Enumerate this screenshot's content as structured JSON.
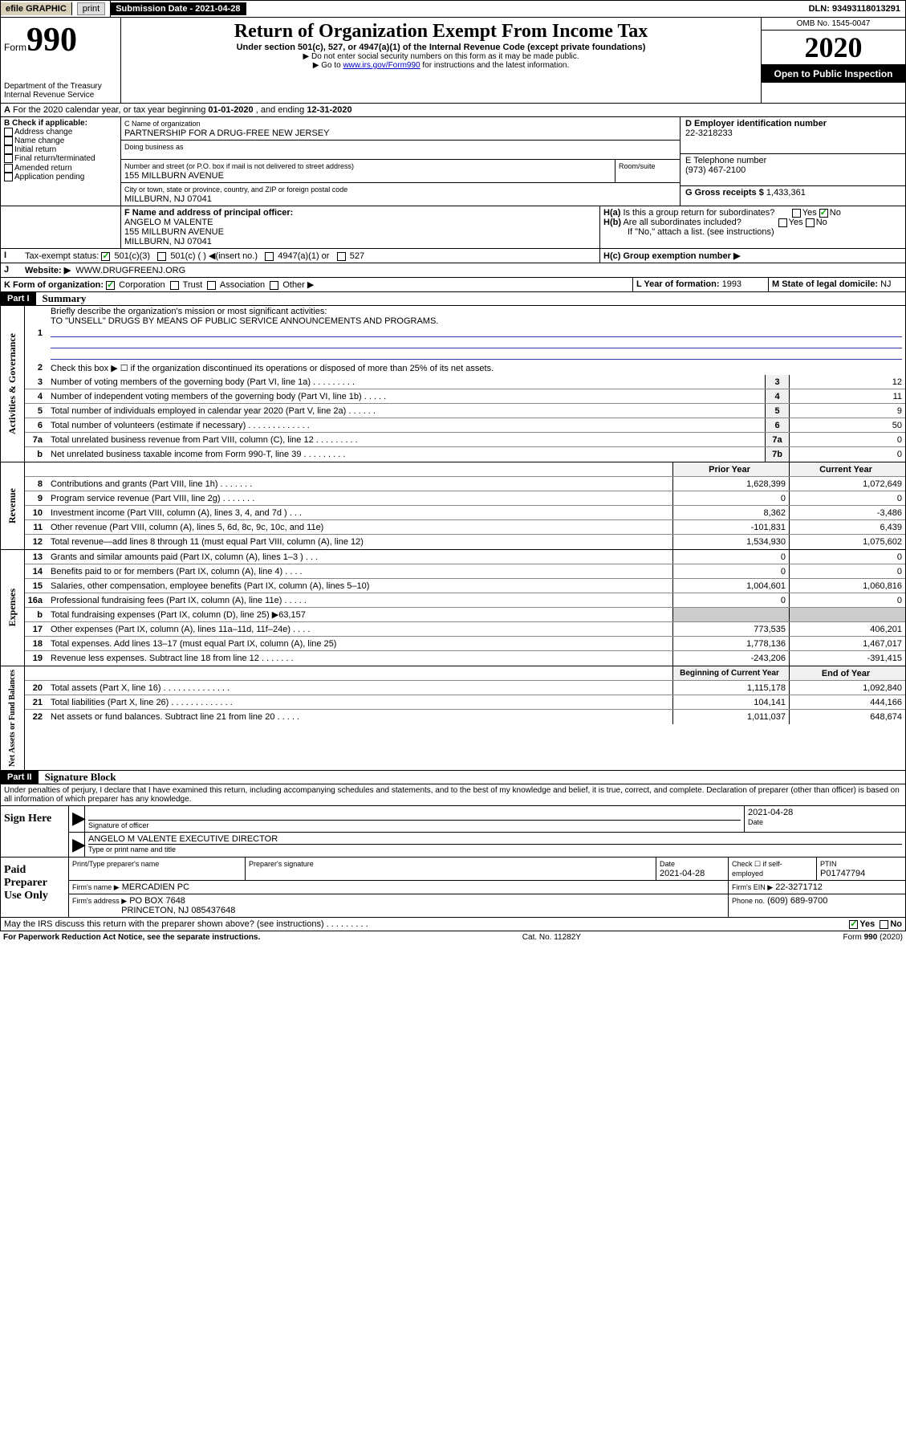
{
  "topbar": {
    "efile": "efile GRAPHIC",
    "print": "print",
    "submission_label": "Submission Date",
    "submission_date": "2021-04-28",
    "dln_label": "DLN:",
    "dln": "93493118013291"
  },
  "header": {
    "form_word": "Form",
    "form_num": "990",
    "dept": "Department of the Treasury",
    "irs": "Internal Revenue Service",
    "title": "Return of Organization Exempt From Income Tax",
    "subtitle": "Under section 501(c), 527, or 4947(a)(1) of the Internal Revenue Code (except private foundations)",
    "instr1": "▶ Do not enter social security numbers on this form as it may be made public.",
    "instr2_pre": "▶ Go to ",
    "instr2_link": "www.irs.gov/Form990",
    "instr2_post": " for instructions and the latest information.",
    "omb": "OMB No. 1545-0047",
    "year": "2020",
    "inspect": "Open to Public Inspection"
  },
  "periodA": {
    "text_pre": "For the 2020 calendar year, or tax year beginning ",
    "begin": "01-01-2020",
    "mid": " , and ending ",
    "end": "12-31-2020"
  },
  "boxB": {
    "label": "B Check if applicable:",
    "items": [
      "Address change",
      "Name change",
      "Initial return",
      "Final return/terminated",
      "Amended return",
      "Application pending"
    ]
  },
  "boxC": {
    "name_label": "C Name of organization",
    "name": "PARTNERSHIP FOR A DRUG-FREE NEW JERSEY",
    "dba_label": "Doing business as",
    "addr_label": "Number and street (or P.O. box if mail is not delivered to street address)",
    "room_label": "Room/suite",
    "addr": "155 MILLBURN AVENUE",
    "city_label": "City or town, state or province, country, and ZIP or foreign postal code",
    "city": "MILLBURN, NJ  07041"
  },
  "boxD": {
    "label": "D Employer identification number",
    "ein": "22-3218233"
  },
  "boxE": {
    "label": "E Telephone number",
    "phone": "(973) 467-2100"
  },
  "boxG": {
    "label": "G Gross receipts $",
    "amount": "1,433,361"
  },
  "boxF": {
    "label": "F Name and address of principal officer:",
    "name": "ANGELO M VALENTE",
    "addr1": "155 MILLBURN AVENUE",
    "addr2": "MILLBURN, NJ  07041"
  },
  "boxH": {
    "a_label": "H(a)  Is this a group return for subordinates?",
    "b_label": "H(b)  Are all subordinates included?",
    "b_note": "If \"No,\" attach a list. (see instructions)",
    "c_label": "H(c)  Group exemption number ▶",
    "yes": "Yes",
    "no": "No"
  },
  "boxI": {
    "label": "Tax-exempt status:",
    "opt1": "501(c)(3)",
    "opt2": "501(c) (   ) ◀(insert no.)",
    "opt3": "4947(a)(1) or",
    "opt4": "527"
  },
  "boxJ": {
    "label": "Website: ▶",
    "value": "WWW.DRUGFREENJ.ORG"
  },
  "boxK": {
    "label": "K Form of organization:",
    "opts": [
      "Corporation",
      "Trust",
      "Association",
      "Other ▶"
    ]
  },
  "boxL": {
    "label": "L Year of formation:",
    "value": "1993"
  },
  "boxM": {
    "label": "M State of legal domicile:",
    "value": "NJ"
  },
  "part1": {
    "num": "Part I",
    "title": "Summary"
  },
  "governance": {
    "label": "Activities & Governance",
    "line1_label": "Briefly describe the organization's mission or most significant activities:",
    "line1_text": "TO \"UNSELL\" DRUGS BY MEANS OF PUBLIC SERVICE ANNOUNCEMENTS AND PROGRAMS.",
    "line2": "Check this box ▶ ☐  if the organization discontinued its operations or disposed of more than 25% of its net assets.",
    "rows": [
      {
        "n": "3",
        "t": "Number of voting members of the governing body (Part VI, line 1a)   .    .    .   .    .    .    .   .    .",
        "b": "3",
        "v": "12"
      },
      {
        "n": "4",
        "t": "Number of independent voting members of the governing body (Part VI, line 1b)   .    .   .    .    .",
        "b": "4",
        "v": "11"
      },
      {
        "n": "5",
        "t": "Total number of individuals employed in calendar year 2020 (Part V, line 2a)   .    .    .   .    .    .",
        "b": "5",
        "v": "9"
      },
      {
        "n": "6",
        "t": "Total number of volunteers (estimate if necessary)    .   .    .    .    .   .    .    .    .   .    .    .    .",
        "b": "6",
        "v": "50"
      },
      {
        "n": "7a",
        "t": "Total unrelated business revenue from Part VIII, column (C), line 12   .    .    .   .    .    .    .   .    .",
        "b": "7a",
        "v": "0"
      },
      {
        "n": "b",
        "t": "Net unrelated business taxable income from Form 990-T, line 39    .   .    .    .    .   .    .    .    .",
        "b": "7b",
        "v": "0"
      }
    ]
  },
  "revenue": {
    "label": "Revenue",
    "header_prior": "Prior Year",
    "header_current": "Current Year",
    "rows": [
      {
        "n": "8",
        "t": "Contributions and grants (Part VIII, line 1h)    .   .    .    .    .   .    .",
        "p": "1,628,399",
        "c": "1,072,649"
      },
      {
        "n": "9",
        "t": "Program service revenue (Part VIII, line 2g)   .    .   .    .    .    .   .",
        "p": "0",
        "c": "0"
      },
      {
        "n": "10",
        "t": "Investment income (Part VIII, column (A), lines 3, 4, and 7d )   .    .   .",
        "p": "8,362",
        "c": "-3,486"
      },
      {
        "n": "11",
        "t": "Other revenue (Part VIII, column (A), lines 5, 6d, 8c, 9c, 10c, and 11e)",
        "p": "-101,831",
        "c": "6,439"
      },
      {
        "n": "12",
        "t": "Total revenue—add lines 8 through 11 (must equal Part VIII, column (A), line 12)",
        "p": "1,534,930",
        "c": "1,075,602"
      }
    ]
  },
  "expenses": {
    "label": "Expenses",
    "rows": [
      {
        "n": "13",
        "t": "Grants and similar amounts paid (Part IX, column (A), lines 1–3 )    .   .    .",
        "p": "0",
        "c": "0"
      },
      {
        "n": "14",
        "t": "Benefits paid to or for members (Part IX, column (A), line 4)    .   .    .    .",
        "p": "0",
        "c": "0"
      },
      {
        "n": "15",
        "t": "Salaries, other compensation, employee benefits (Part IX, column (A), lines 5–10)",
        "p": "1,004,601",
        "c": "1,060,816"
      },
      {
        "n": "16a",
        "t": "Professional fundraising fees (Part IX, column (A), line 11e)   .    .   .    .    .",
        "p": "0",
        "c": "0"
      },
      {
        "n": "b",
        "t": "Total fundraising expenses (Part IX, column (D), line 25) ▶63,157",
        "p": "",
        "c": "",
        "shaded": true
      },
      {
        "n": "17",
        "t": "Other expenses (Part IX, column (A), lines 11a–11d, 11f–24e)   .    .   .    .",
        "p": "773,535",
        "c": "406,201"
      },
      {
        "n": "18",
        "t": "Total expenses. Add lines 13–17 (must equal Part IX, column (A), line 25)",
        "p": "1,778,136",
        "c": "1,467,017"
      },
      {
        "n": "19",
        "t": "Revenue less expenses. Subtract line 18 from line 12    .   .    .    .    .   .    .",
        "p": "-243,206",
        "c": "-391,415"
      }
    ]
  },
  "netassets": {
    "label": "Net Assets or Fund Balances",
    "header_begin": "Beginning of Current Year",
    "header_end": "End of Year",
    "rows": [
      {
        "n": "20",
        "t": "Total assets (Part X, line 16)    .   .    .    .    .   .    .    .    .   .    .    .    .   .",
        "p": "1,115,178",
        "c": "1,092,840"
      },
      {
        "n": "21",
        "t": "Total liabilities (Part X, line 26)   .    .    .    .   .    .    .    .   .    .    .    .   .",
        "p": "104,141",
        "c": "444,166"
      },
      {
        "n": "22",
        "t": "Net assets or fund balances. Subtract line 21 from line 20    .   .    .    .    .",
        "p": "1,011,037",
        "c": "648,674"
      }
    ]
  },
  "part2": {
    "num": "Part II",
    "title": "Signature Block"
  },
  "perjury": "Under penalties of perjury, I declare that I have examined this return, including accompanying schedules and statements, and to the best of my knowledge and belief, it is true, correct, and complete. Declaration of preparer (other than officer) is based on all information of which preparer has any knowledge.",
  "sign": {
    "side": "Sign Here",
    "sig_label": "Signature of officer",
    "date_label": "Date",
    "date": "2021-04-28",
    "name": "ANGELO M VALENTE  EXECUTIVE DIRECTOR",
    "name_label": "Type or print name and title"
  },
  "preparer": {
    "side": "Paid Preparer Use Only",
    "name_hdr": "Print/Type preparer's name",
    "sig_hdr": "Preparer's signature",
    "date_hdr": "Date",
    "date": "2021-04-28",
    "check_label": "Check ☐ if self-employed",
    "ptin_hdr": "PTIN",
    "ptin": "P01747794",
    "firm_name_label": "Firm's name     ▶",
    "firm_name": "MERCADIEN PC",
    "firm_ein_label": "Firm's EIN ▶",
    "firm_ein": "22-3271712",
    "firm_addr_label": "Firm's address ▶",
    "firm_addr": "PO BOX 7648",
    "firm_city": "PRINCETON, NJ  085437648",
    "phone_label": "Phone no.",
    "phone": "(609) 689-9700"
  },
  "discuss": {
    "text": "May the IRS discuss this return with the preparer shown above? (see instructions)    .   .    .    .    .   .    .    .    .",
    "yes": "Yes",
    "no": "No"
  },
  "footer": {
    "left": "For Paperwork Reduction Act Notice, see the separate instructions.",
    "mid": "Cat. No. 11282Y",
    "right": "Form 990 (2020)"
  }
}
